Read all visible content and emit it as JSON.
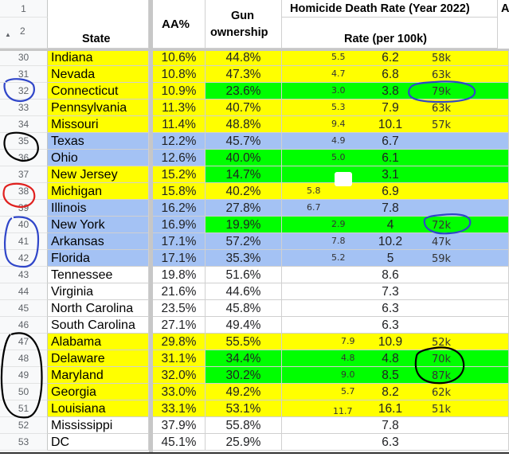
{
  "header": {
    "row1_num": "1",
    "row2_num": "2",
    "state": "State",
    "aa": "AA%",
    "gun": "Gun ownership",
    "gun_line1": "Gun",
    "gun_line2": "ownership",
    "group_title": "Homicide Death Rate (Year 2022)",
    "rate_title": "Rate (per 100k)",
    "next_col_partial": "A"
  },
  "colors": {
    "yellow": "#ffff00",
    "green": "#00ff00",
    "blue": "#a4c2f4",
    "white": "#ffffff",
    "ink_blue": "#3046c9",
    "ink_red": "#e0201e",
    "ink_black": "#000000"
  },
  "rows": [
    {
      "num": "30",
      "state": "Indiana",
      "aa": "10.6%",
      "gun": "44.8%",
      "rate": "6.2",
      "note": "5.5",
      "income": "58k",
      "state_bg": "yellow",
      "gun_bg": "yellow",
      "rest_bg": "yellow"
    },
    {
      "num": "31",
      "state": "Nevada",
      "aa": "10.8%",
      "gun": "47.3%",
      "rate": "6.8",
      "note": "4.7",
      "income": "63k",
      "state_bg": "yellow",
      "gun_bg": "yellow",
      "rest_bg": "yellow"
    },
    {
      "num": "32",
      "state": "Connecticut",
      "aa": "10.9%",
      "gun": "23.6%",
      "rate": "3.8",
      "note": "3.0",
      "income": "79k",
      "state_bg": "yellow",
      "gun_bg": "green",
      "rest_bg": "green"
    },
    {
      "num": "33",
      "state": "Pennsylvania",
      "aa": "11.3%",
      "gun": "40.7%",
      "rate": "7.9",
      "note": "5.3",
      "income": "63k",
      "state_bg": "yellow",
      "gun_bg": "yellow",
      "rest_bg": "yellow"
    },
    {
      "num": "34",
      "state": "Missouri",
      "aa": "11.4%",
      "gun": "48.8%",
      "rate": "10.1",
      "note": "9.4",
      "income": "57k",
      "state_bg": "yellow",
      "gun_bg": "yellow",
      "rest_bg": "yellow"
    },
    {
      "num": "35",
      "state": "Texas",
      "aa": "12.2%",
      "gun": "45.7%",
      "rate": "6.7",
      "note": "4.9",
      "income": "",
      "state_bg": "blue",
      "gun_bg": "blue",
      "rest_bg": "blue"
    },
    {
      "num": "36",
      "state": "Ohio",
      "aa": "12.6%",
      "gun": "40.0%",
      "rate": "6.1",
      "note": "5.0",
      "income": "",
      "state_bg": "blue",
      "gun_bg": "green",
      "rest_bg": "green"
    },
    {
      "num": "37",
      "state": "New Jersey",
      "aa": "15.2%",
      "gun": "14.7%",
      "rate": "3.1",
      "note": "",
      "income": "",
      "state_bg": "yellow",
      "gun_bg": "green",
      "rest_bg": "green"
    },
    {
      "num": "38",
      "state": "Michigan",
      "aa": "15.8%",
      "gun": "40.2%",
      "rate": "6.9",
      "note": "5.8",
      "income": "",
      "state_bg": "yellow",
      "gun_bg": "yellow",
      "rest_bg": "yellow"
    },
    {
      "num": "39",
      "state": "Illinois",
      "aa": "16.2%",
      "gun": "27.8%",
      "rate": "7.8",
      "note": "6.7",
      "income": "",
      "state_bg": "blue",
      "gun_bg": "blue",
      "rest_bg": "blue"
    },
    {
      "num": "40",
      "state": "New York",
      "aa": "16.9%",
      "gun": "19.9%",
      "rate": "4",
      "note": "2.9",
      "income": "72k",
      "state_bg": "blue",
      "gun_bg": "green",
      "rest_bg": "green"
    },
    {
      "num": "41",
      "state": "Arkansas",
      "aa": "17.1%",
      "gun": "57.2%",
      "rate": "10.2",
      "note": "7.8",
      "income": "47k",
      "state_bg": "blue",
      "gun_bg": "blue",
      "rest_bg": "blue"
    },
    {
      "num": "42",
      "state": "Florida",
      "aa": "17.1%",
      "gun": "35.3%",
      "rate": "5",
      "note": "5.2",
      "income": "59k",
      "state_bg": "blue",
      "gun_bg": "blue",
      "rest_bg": "blue"
    },
    {
      "num": "43",
      "state": "Tennessee",
      "aa": "19.8%",
      "gun": "51.6%",
      "rate": "8.6",
      "note": "",
      "income": "",
      "state_bg": "white",
      "gun_bg": "white",
      "rest_bg": "white"
    },
    {
      "num": "44",
      "state": "Virginia",
      "aa": "21.6%",
      "gun": "44.6%",
      "rate": "7.3",
      "note": "",
      "income": "",
      "state_bg": "white",
      "gun_bg": "white",
      "rest_bg": "white"
    },
    {
      "num": "45",
      "state": "North Carolina",
      "aa": "23.5%",
      "gun": "45.8%",
      "rate": "6.3",
      "note": "",
      "income": "",
      "state_bg": "white",
      "gun_bg": "white",
      "rest_bg": "white"
    },
    {
      "num": "46",
      "state": "South Carolina",
      "aa": "27.1%",
      "gun": "49.4%",
      "rate": "6.3",
      "note": "",
      "income": "",
      "state_bg": "white",
      "gun_bg": "white",
      "rest_bg": "white"
    },
    {
      "num": "47",
      "state": "Alabama",
      "aa": "29.8%",
      "gun": "55.5%",
      "rate": "10.9",
      "note": "7.9",
      "income": "52k",
      "state_bg": "yellow",
      "gun_bg": "yellow",
      "rest_bg": "yellow"
    },
    {
      "num": "48",
      "state": "Delaware",
      "aa": "31.1%",
      "gun": "34.4%",
      "rate": "4.8",
      "note": "4.8",
      "income": "70k",
      "state_bg": "yellow",
      "gun_bg": "green",
      "rest_bg": "green"
    },
    {
      "num": "49",
      "state": "Maryland",
      "aa": "32.0%",
      "gun": "30.2%",
      "rate": "8.5",
      "note": "9.0",
      "income": "87k",
      "state_bg": "yellow",
      "gun_bg": "green",
      "rest_bg": "green"
    },
    {
      "num": "50",
      "state": "Georgia",
      "aa": "33.0%",
      "gun": "49.2%",
      "rate": "8.2",
      "note": "5.7",
      "income": "62k",
      "state_bg": "yellow",
      "gun_bg": "yellow",
      "rest_bg": "yellow"
    },
    {
      "num": "51",
      "state": "Louisiana",
      "aa": "33.1%",
      "gun": "53.1%",
      "rate": "16.1",
      "note": "11.7",
      "income": "51k",
      "state_bg": "yellow",
      "gun_bg": "yellow",
      "rest_bg": "yellow"
    },
    {
      "num": "52",
      "state": "Mississippi",
      "aa": "37.9%",
      "gun": "55.8%",
      "rate": "7.8",
      "note": "",
      "income": "",
      "state_bg": "white",
      "gun_bg": "white",
      "rest_bg": "white"
    },
    {
      "num": "53",
      "state": "DC",
      "aa": "45.1%",
      "gun": "25.9%",
      "rate": "6.3",
      "note": "",
      "income": "",
      "state_bg": "white",
      "gun_bg": "white",
      "rest_bg": "white"
    }
  ]
}
